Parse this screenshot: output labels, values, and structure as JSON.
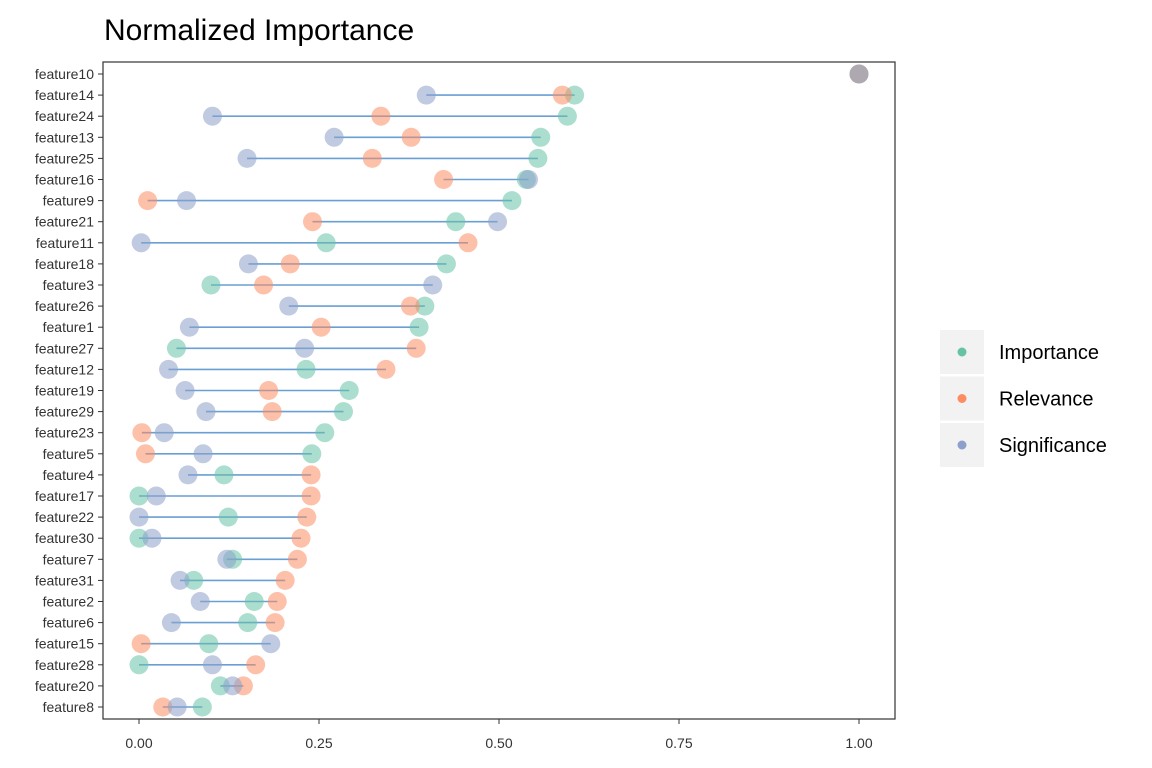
{
  "chart_data": {
    "type": "dumbbell",
    "title": "Normalized Importance",
    "xlabel": "",
    "ylabel": "",
    "xlim": [
      -0.05,
      1.05
    ],
    "x_ticks": [
      0.0,
      0.25,
      0.5,
      0.75,
      1.0
    ],
    "x_tick_labels": [
      "0.00",
      "0.25",
      "0.50",
      "0.75",
      "1.00"
    ],
    "grid": false,
    "legend_position": "right",
    "categories": [
      "feature10",
      "feature14",
      "feature24",
      "feature13",
      "feature25",
      "feature16",
      "feature9",
      "feature21",
      "feature11",
      "feature18",
      "feature3",
      "feature26",
      "feature1",
      "feature27",
      "feature12",
      "feature19",
      "feature29",
      "feature23",
      "feature5",
      "feature4",
      "feature17",
      "feature22",
      "feature30",
      "feature7",
      "feature31",
      "feature2",
      "feature6",
      "feature15",
      "feature28",
      "feature20",
      "feature8"
    ],
    "series": [
      {
        "name": "Importance",
        "color": "#66c2a5",
        "values": [
          1.0,
          0.605,
          0.595,
          0.558,
          0.554,
          0.538,
          0.518,
          0.44,
          0.26,
          0.427,
          0.1,
          0.397,
          0.389,
          0.052,
          0.232,
          0.292,
          0.284,
          0.258,
          0.24,
          0.118,
          0.0,
          0.124,
          0.0,
          0.13,
          0.076,
          0.16,
          0.151,
          0.097,
          0.0,
          0.113,
          0.088
        ]
      },
      {
        "name": "Relevance",
        "color": "#fc8d62",
        "values": [
          1.0,
          0.588,
          0.336,
          0.378,
          0.324,
          0.423,
          0.012,
          0.241,
          0.457,
          0.21,
          0.173,
          0.377,
          0.253,
          0.385,
          0.343,
          0.18,
          0.185,
          0.004,
          0.009,
          0.239,
          0.239,
          0.233,
          0.225,
          0.22,
          0.203,
          0.192,
          0.189,
          0.003,
          0.162,
          0.145,
          0.033
        ]
      },
      {
        "name": "Significance",
        "color": "#8da0cb",
        "values": [
          1.0,
          0.399,
          0.102,
          0.271,
          0.15,
          0.541,
          0.066,
          0.498,
          0.003,
          0.152,
          0.408,
          0.208,
          0.07,
          0.23,
          0.041,
          0.064,
          0.093,
          0.035,
          0.089,
          0.068,
          0.024,
          0.0,
          0.018,
          0.122,
          0.057,
          0.085,
          0.045,
          0.183,
          0.102,
          0.13,
          0.053
        ]
      }
    ],
    "segment_color": "#6a9fd4"
  },
  "legend": {
    "items": [
      {
        "label": "Importance",
        "color": "#66c2a5"
      },
      {
        "label": "Relevance",
        "color": "#fc8d62"
      },
      {
        "label": "Significance",
        "color": "#8da0cb"
      }
    ]
  }
}
